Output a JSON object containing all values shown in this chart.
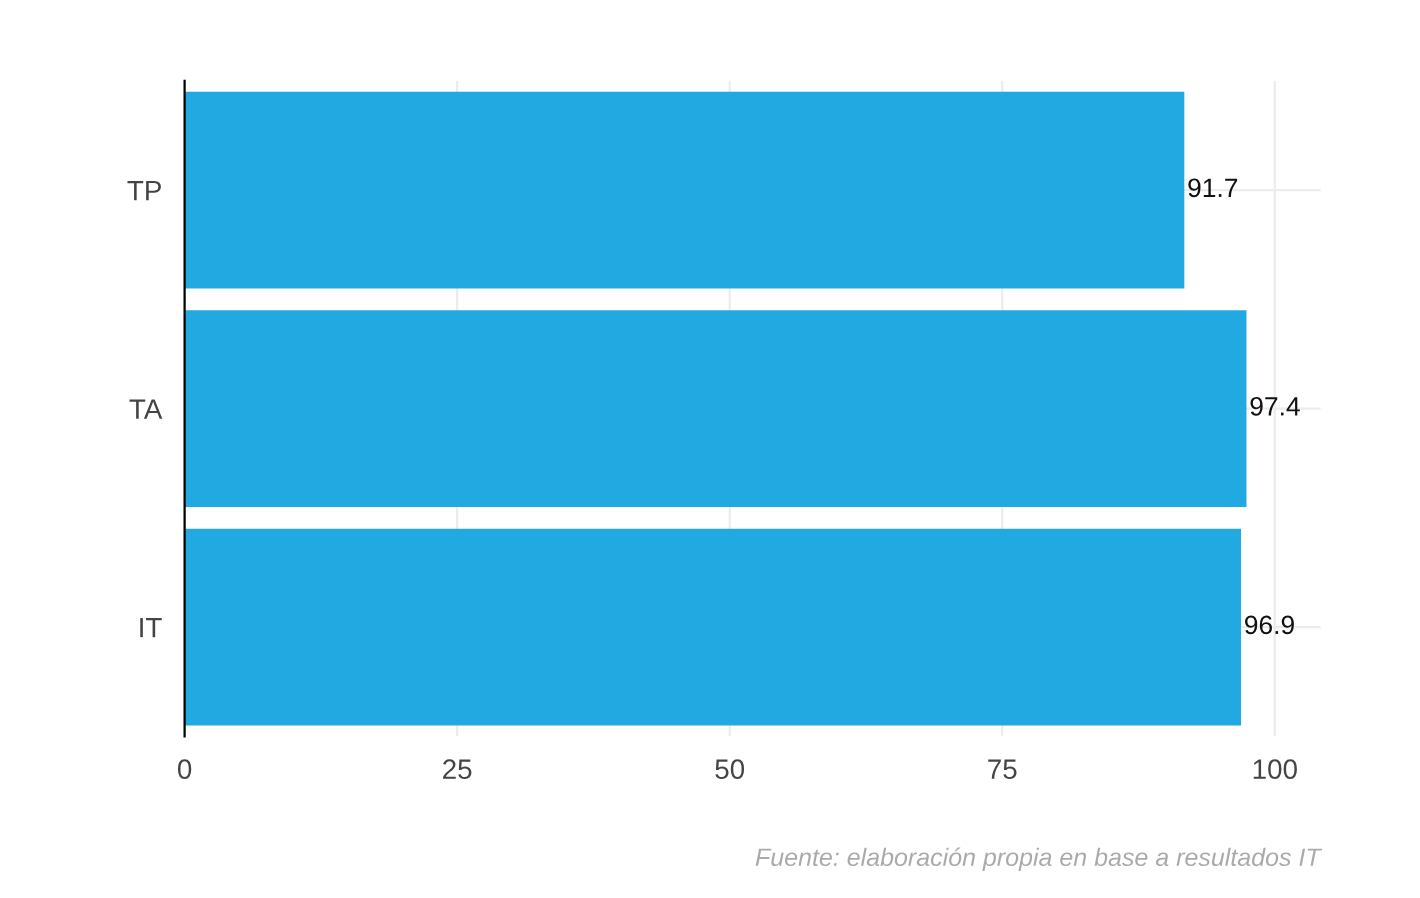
{
  "chart_data": {
    "type": "bar",
    "orientation": "horizontal",
    "categories": [
      "TP",
      "TA",
      "IT"
    ],
    "series": [
      {
        "color": "#22a9e1",
        "values": [
          91.7,
          97.4,
          96.9
        ]
      }
    ],
    "data_labels": true,
    "xlim": [
      0,
      104.2
    ],
    "xticks": [
      0,
      25,
      50,
      75,
      100
    ],
    "grid": true,
    "legend": false,
    "annotations": [
      "Fuente: elaboración propia en base a resultados IT"
    ]
  }
}
